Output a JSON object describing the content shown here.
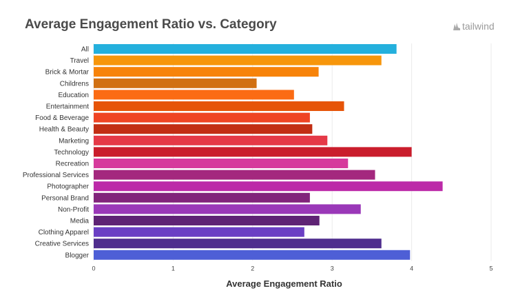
{
  "logo_text": "tailwind",
  "chart_data": {
    "type": "bar",
    "orientation": "horizontal",
    "title": "Average Engagement Ratio vs. Category",
    "xlabel": "Average Engagement Ratio",
    "ylabel": "",
    "xlim": [
      0,
      5
    ],
    "xticks": [
      0,
      1,
      2,
      3,
      4,
      5
    ],
    "grid": true,
    "categories": [
      "All",
      "Travel",
      "Brick & Mortar",
      "Childrens",
      "Education",
      "Entertainment",
      "Food & Beverage",
      "Health & Beauty",
      "Marketing",
      "Technology",
      "Recreation",
      "Professional Services",
      "Photographer",
      "Personal Brand",
      "Non-Profit",
      "Media",
      "Clothing Apparel",
      "Creative Services",
      "Blogger"
    ],
    "values": [
      3.81,
      3.62,
      2.83,
      2.05,
      2.52,
      3.15,
      2.72,
      2.75,
      2.94,
      4.0,
      3.2,
      3.54,
      4.39,
      2.72,
      3.36,
      2.84,
      2.65,
      3.62,
      3.98
    ],
    "colors": [
      "#24b0dd",
      "#f7960b",
      "#f7830a",
      "#d17012",
      "#fb6b14",
      "#e65408",
      "#ef4424",
      "#c22e14",
      "#e53947",
      "#ca1d2c",
      "#d63a9c",
      "#a4287e",
      "#bc2aa8",
      "#81247b",
      "#9a38b8",
      "#5f2375",
      "#6b3fc4",
      "#4f2d8e",
      "#4e5fd6"
    ]
  }
}
